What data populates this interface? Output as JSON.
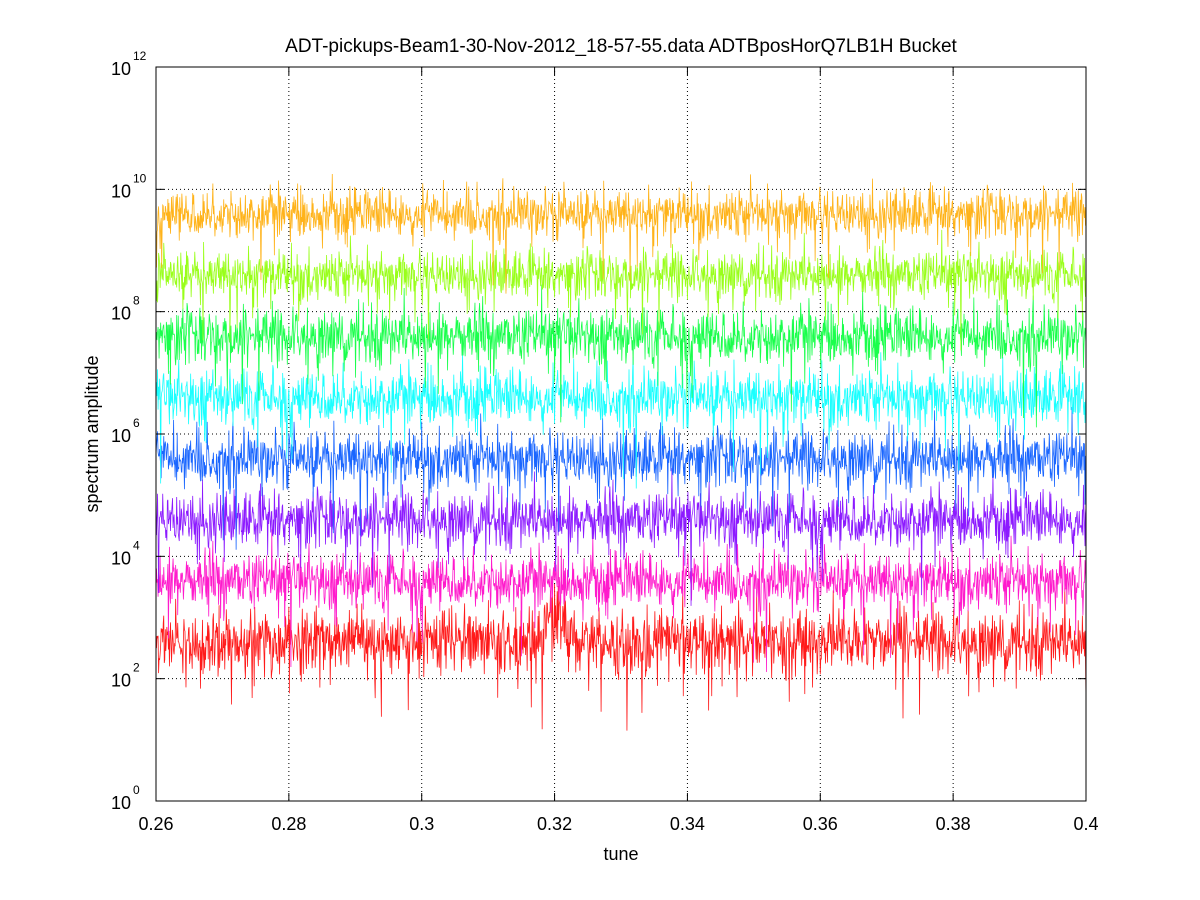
{
  "chart_data": {
    "type": "line",
    "title": "ADT-pickups-Beam1-30-Nov-2012_18-57-55.data   ADTBposHorQ7LB1H Bucket",
    "xlabel": "tune",
    "ylabel": "spectrum amplitude",
    "xlim": [
      0.26,
      0.4
    ],
    "ylim": [
      1,
      1000000000000
    ],
    "yscale": "log",
    "grid": true,
    "legend": "none",
    "x_ticks": [
      {
        "value": 0.26,
        "label": "0.26"
      },
      {
        "value": 0.28,
        "label": "0.28"
      },
      {
        "value": 0.3,
        "label": "0.3"
      },
      {
        "value": 0.32,
        "label": "0.32"
      },
      {
        "value": 0.34,
        "label": "0.34"
      },
      {
        "value": 0.36,
        "label": "0.36"
      },
      {
        "value": 0.38,
        "label": "0.38"
      },
      {
        "value": 0.4,
        "label": "0.4"
      }
    ],
    "y_ticks": [
      {
        "exp": 0,
        "base": "10",
        "sup": "0"
      },
      {
        "exp": 2,
        "base": "10",
        "sup": "2"
      },
      {
        "exp": 4,
        "base": "10",
        "sup": "4"
      },
      {
        "exp": 6,
        "base": "10",
        "sup": "6"
      },
      {
        "exp": 8,
        "base": "10",
        "sup": "8"
      },
      {
        "exp": 10,
        "base": "10",
        "sup": "10"
      },
      {
        "exp": 12,
        "base": "10",
        "sup": "12"
      }
    ],
    "series": [
      {
        "color": "#ff1a1a",
        "log10_center": 2.6,
        "log10_spread": 0.45,
        "spike_x": 0.3205,
        "spike_log10": 3.7
      },
      {
        "color": "#ff1acc",
        "log10_center": 3.6,
        "log10_spread": 0.4
      },
      {
        "color": "#8c1aff",
        "log10_center": 4.6,
        "log10_spread": 0.4
      },
      {
        "color": "#1a66ff",
        "log10_center": 5.6,
        "log10_spread": 0.4
      },
      {
        "color": "#1affff",
        "log10_center": 6.6,
        "log10_spread": 0.4
      },
      {
        "color": "#1aff4c",
        "log10_center": 7.6,
        "log10_spread": 0.4
      },
      {
        "color": "#99ff1a",
        "log10_center": 8.6,
        "log10_spread": 0.35
      },
      {
        "color": "#ffb31a",
        "log10_center": 9.6,
        "log10_spread": 0.35
      }
    ]
  }
}
